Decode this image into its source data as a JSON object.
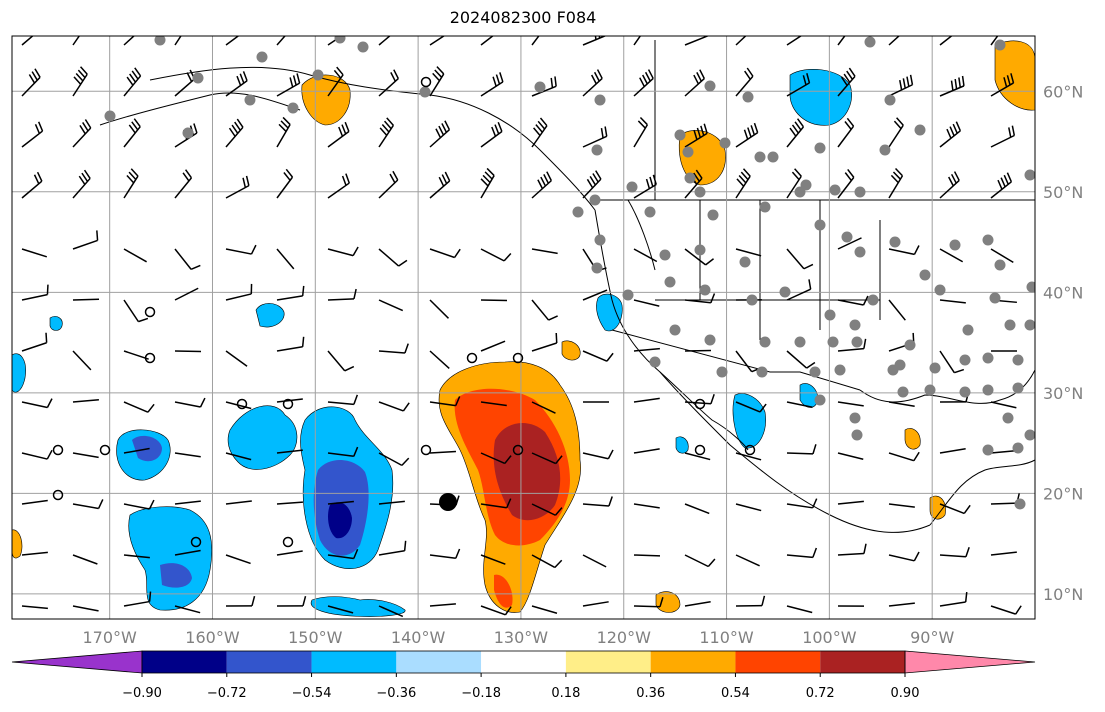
{
  "title": "2024082300 F084",
  "map": {
    "lon_range": [
      -179.5,
      -80.0
    ],
    "lat_range": [
      7.5,
      65.5
    ],
    "lat_labels": [
      "60°N",
      "50°N",
      "40°N",
      "30°N",
      "20°N",
      "10°N"
    ],
    "lat_values": [
      60,
      50,
      40,
      30,
      20,
      10
    ],
    "lon_labels": [
      "170°W",
      "160°W",
      "150°W",
      "140°W",
      "130°W",
      "120°W",
      "110°W",
      "100°W",
      "90°W"
    ],
    "lon_values": [
      -170,
      -160,
      -150,
      -140,
      -130,
      -120,
      -110,
      -100,
      -90
    ],
    "gridlines": true,
    "grid_color": "#a0a0a0",
    "station_color": "#808080",
    "open_circle_color": "#000000",
    "storm_marker_color": "#000000"
  },
  "colorbar": {
    "colors": [
      "#9933cc",
      "#000088",
      "#3355cc",
      "#00bbff",
      "#aaddff",
      "#ffffff",
      "#ffee88",
      "#ffaa00",
      "#ff4400",
      "#aa2222",
      "#ff88aa"
    ],
    "tick_labels": [
      "−0.90",
      "−0.72",
      "−0.54",
      "−0.36",
      "−0.18",
      "0.18",
      "0.36",
      "0.54",
      "0.72",
      "0.90"
    ]
  }
}
